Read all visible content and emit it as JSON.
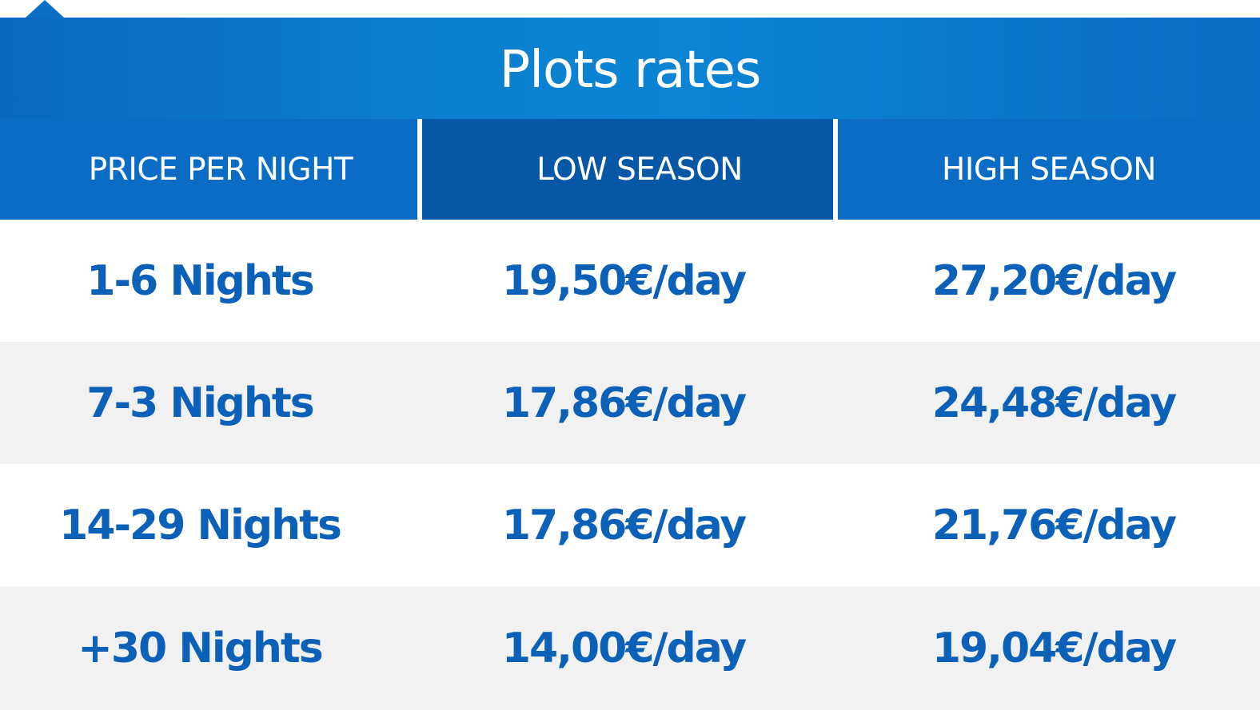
{
  "title": "Plots rates",
  "colors": {
    "primary_blue": "#0a6cc4",
    "dark_blue": "#0657a6",
    "text_blue": "#0b60b8",
    "stripe_gray": "#f1f1f1"
  },
  "table": {
    "headers": [
      "PRICE PER NIGHT",
      "LOW SEASON",
      "HIGH SEASON"
    ],
    "rows": [
      [
        "1-6 Nights",
        "19,50€/day",
        "27,20€/day"
      ],
      [
        "7-3 Nights",
        "17,86€/day",
        "24,48€/day"
      ],
      [
        "14-29 Nights",
        "17,86€/day",
        "21,76€/day"
      ],
      [
        "+30 Nights",
        "14,00€/day",
        "19,04€/day"
      ]
    ]
  }
}
